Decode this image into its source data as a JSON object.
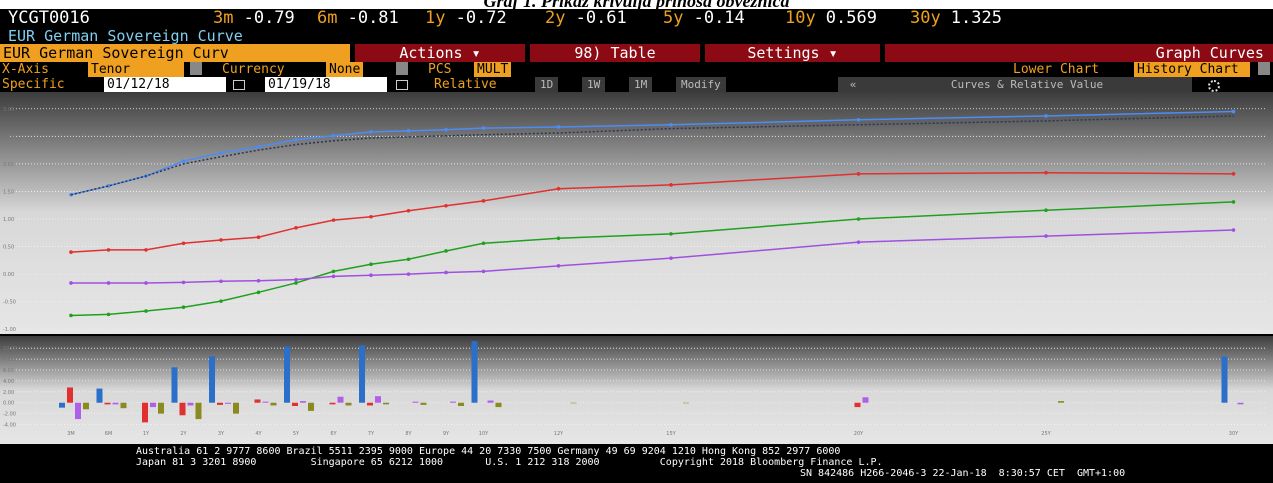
{
  "caption": "Graf 1. Prikaz krivulja prinosa obveznica",
  "header": {
    "ticker": "YCGT0016",
    "quotes": [
      {
        "tenor": "3m",
        "value": -0.79
      },
      {
        "tenor": "6m",
        "value": -0.81
      },
      {
        "tenor": "1y",
        "value": -0.72
      },
      {
        "tenor": "2y",
        "value": -0.61
      },
      {
        "tenor": "5y",
        "value": -0.14
      },
      {
        "tenor": "10y",
        "value": 0.569
      },
      {
        "tenor": "30y",
        "value": 1.325
      }
    ],
    "subtitle": "EUR German Sovereign Curve"
  },
  "toolbar": {
    "curve": "EUR German Sovereign Curv",
    "actions": "Actions",
    "table": "98) Table",
    "settings": "Settings",
    "graph": "Graph Curves"
  },
  "options": {
    "xaxis_label": "X-Axis",
    "xaxis": "Tenor",
    "currency_label": "Currency",
    "currency": "None",
    "pcs_label": "PCS",
    "pcs": "MULT",
    "lower_label": "Lower Chart",
    "lower": "History Chart"
  },
  "dates": {
    "label": "Specific",
    "from": "01/12/18",
    "to": "01/19/18",
    "relative": "Relative",
    "buttons": [
      "1D",
      "1W",
      "1M",
      "Modify"
    ],
    "collapse": "«",
    "view": "Curves & Relative Value"
  },
  "chart_data": [
    {
      "type": "line",
      "categories": [
        "3M",
        "6M",
        "1Y",
        "2Y",
        "3Y",
        "4Y",
        "5Y",
        "6Y",
        "7Y",
        "8Y",
        "9Y",
        "10Y",
        "12Y",
        "15Y",
        "20Y",
        "25Y",
        "30Y"
      ],
      "series": [
        {
          "color": "#4d8cf5",
          "style": "solid",
          "values": [
            1.44,
            1.6,
            1.78,
            2.05,
            2.2,
            2.31,
            2.44,
            2.51,
            2.58,
            2.6,
            2.62,
            2.65,
            2.67,
            2.71,
            2.8,
            2.87,
            2.95
          ]
        },
        {
          "color": "#2c3550",
          "style": "dotted",
          "values": [
            1.44,
            1.6,
            1.78,
            2.0,
            2.13,
            2.25,
            2.35,
            2.42,
            2.47,
            2.49,
            2.51,
            2.53,
            2.56,
            2.64,
            2.71,
            2.78,
            2.87
          ]
        },
        {
          "color": "#e03030",
          "style": "solid",
          "values": [
            0.4,
            0.44,
            0.44,
            0.56,
            0.62,
            0.67,
            0.84,
            0.98,
            1.04,
            1.15,
            1.24,
            1.33,
            1.55,
            1.62,
            1.82,
            1.84,
            1.82
          ]
        },
        {
          "color": "#1fa01f",
          "style": "solid",
          "values": [
            -0.75,
            -0.73,
            -0.67,
            -0.6,
            -0.49,
            -0.33,
            -0.16,
            0.05,
            0.18,
            0.27,
            0.42,
            0.56,
            0.65,
            0.73,
            1.0,
            1.16,
            1.31
          ]
        },
        {
          "color": "#a050e0",
          "style": "solid",
          "values": [
            -0.16,
            -0.16,
            -0.16,
            -0.15,
            -0.13,
            -0.12,
            -0.1,
            -0.04,
            -0.02,
            0.0,
            0.03,
            0.05,
            0.15,
            0.29,
            0.58,
            0.69,
            0.8
          ]
        }
      ],
      "ylim": [
        -1.05,
        3.25
      ],
      "yticks": [
        {
          "value": -1,
          "label": "-1.00"
        },
        {
          "value": -0.5,
          "label": "-0.50"
        },
        {
          "value": 0,
          "label": "0.00"
        },
        {
          "value": 0.5,
          "label": "0.50"
        },
        {
          "value": 1,
          "label": "1.00"
        },
        {
          "value": 1.5,
          "label": "1.50"
        },
        {
          "value": 2,
          "label": "2.00"
        },
        {
          "value": 2.5,
          "label": "2.50"
        },
        {
          "value": 3,
          "label": "3.00"
        }
      ],
      "grid": true
    },
    {
      "type": "bar",
      "categories": [
        "3M",
        "6M",
        "1Y",
        "2Y",
        "3Y",
        "4Y",
        "5Y",
        "6Y",
        "7Y",
        "8Y",
        "9Y",
        "10Y",
        "12Y",
        "15Y",
        "20Y",
        "25Y",
        "30Y"
      ],
      "series": [
        {
          "color": "#2a6fc9",
          "values": [
            -0.9,
            2.6,
            0,
            6.5,
            8.5,
            0,
            10.3,
            0,
            10.5,
            0,
            0,
            11.3,
            0,
            0,
            0,
            0,
            8.5
          ]
        },
        {
          "color": "#e03030",
          "values": [
            2.8,
            -0.3,
            -3.6,
            -2.3,
            -0.4,
            0.6,
            -0.6,
            -0.3,
            -0.5,
            0,
            0,
            0,
            0,
            0,
            -0.8,
            0,
            0
          ]
        },
        {
          "color": "#b060e8",
          "values": [
            -3,
            -0.3,
            -0.8,
            -0.5,
            -0.2,
            0.2,
            0.3,
            1.1,
            1.2,
            0.2,
            0.2,
            0.4,
            0,
            0,
            1.0,
            0,
            -0.3
          ]
        },
        {
          "color": "#8a8a20",
          "values": [
            -1.2,
            -1.0,
            -2.0,
            -3.0,
            -2.0,
            -0.5,
            -1.5,
            -0.5,
            -0.3,
            -0.4,
            -0.6,
            -0.8,
            -0.1,
            -0.1,
            0,
            0.3,
            0
          ]
        }
      ],
      "ylim": [
        -5,
        11.5
      ],
      "yticks": [
        {
          "value": -4,
          "label": "-4.00"
        },
        {
          "value": -2,
          "label": "-2.00"
        },
        {
          "value": 0,
          "label": "0.00"
        },
        {
          "value": 2,
          "label": "2.00"
        },
        {
          "value": 4,
          "label": "4.00"
        },
        {
          "value": 6,
          "label": "6.00"
        },
        {
          "value": 8,
          "label": "8.00"
        },
        {
          "value": 10,
          "label": "10.00"
        }
      ],
      "grid": true
    }
  ],
  "footer": [
    "Australia 61 2 9777 8600 Brazil 5511 2395 9000 Europe 44 20 7330 7500 Germany 49 69 9204 1210 Hong Kong 852 2977 6000",
    "Japan 81 3 3201 8900         Singapore 65 6212 1000       U.S. 1 212 318 2000          Copyright 2018 Bloomberg Finance L.P.",
    "SN 842486 H266-2046-3 22-Jan-18  8:30:57 CET  GMT+1:00"
  ]
}
